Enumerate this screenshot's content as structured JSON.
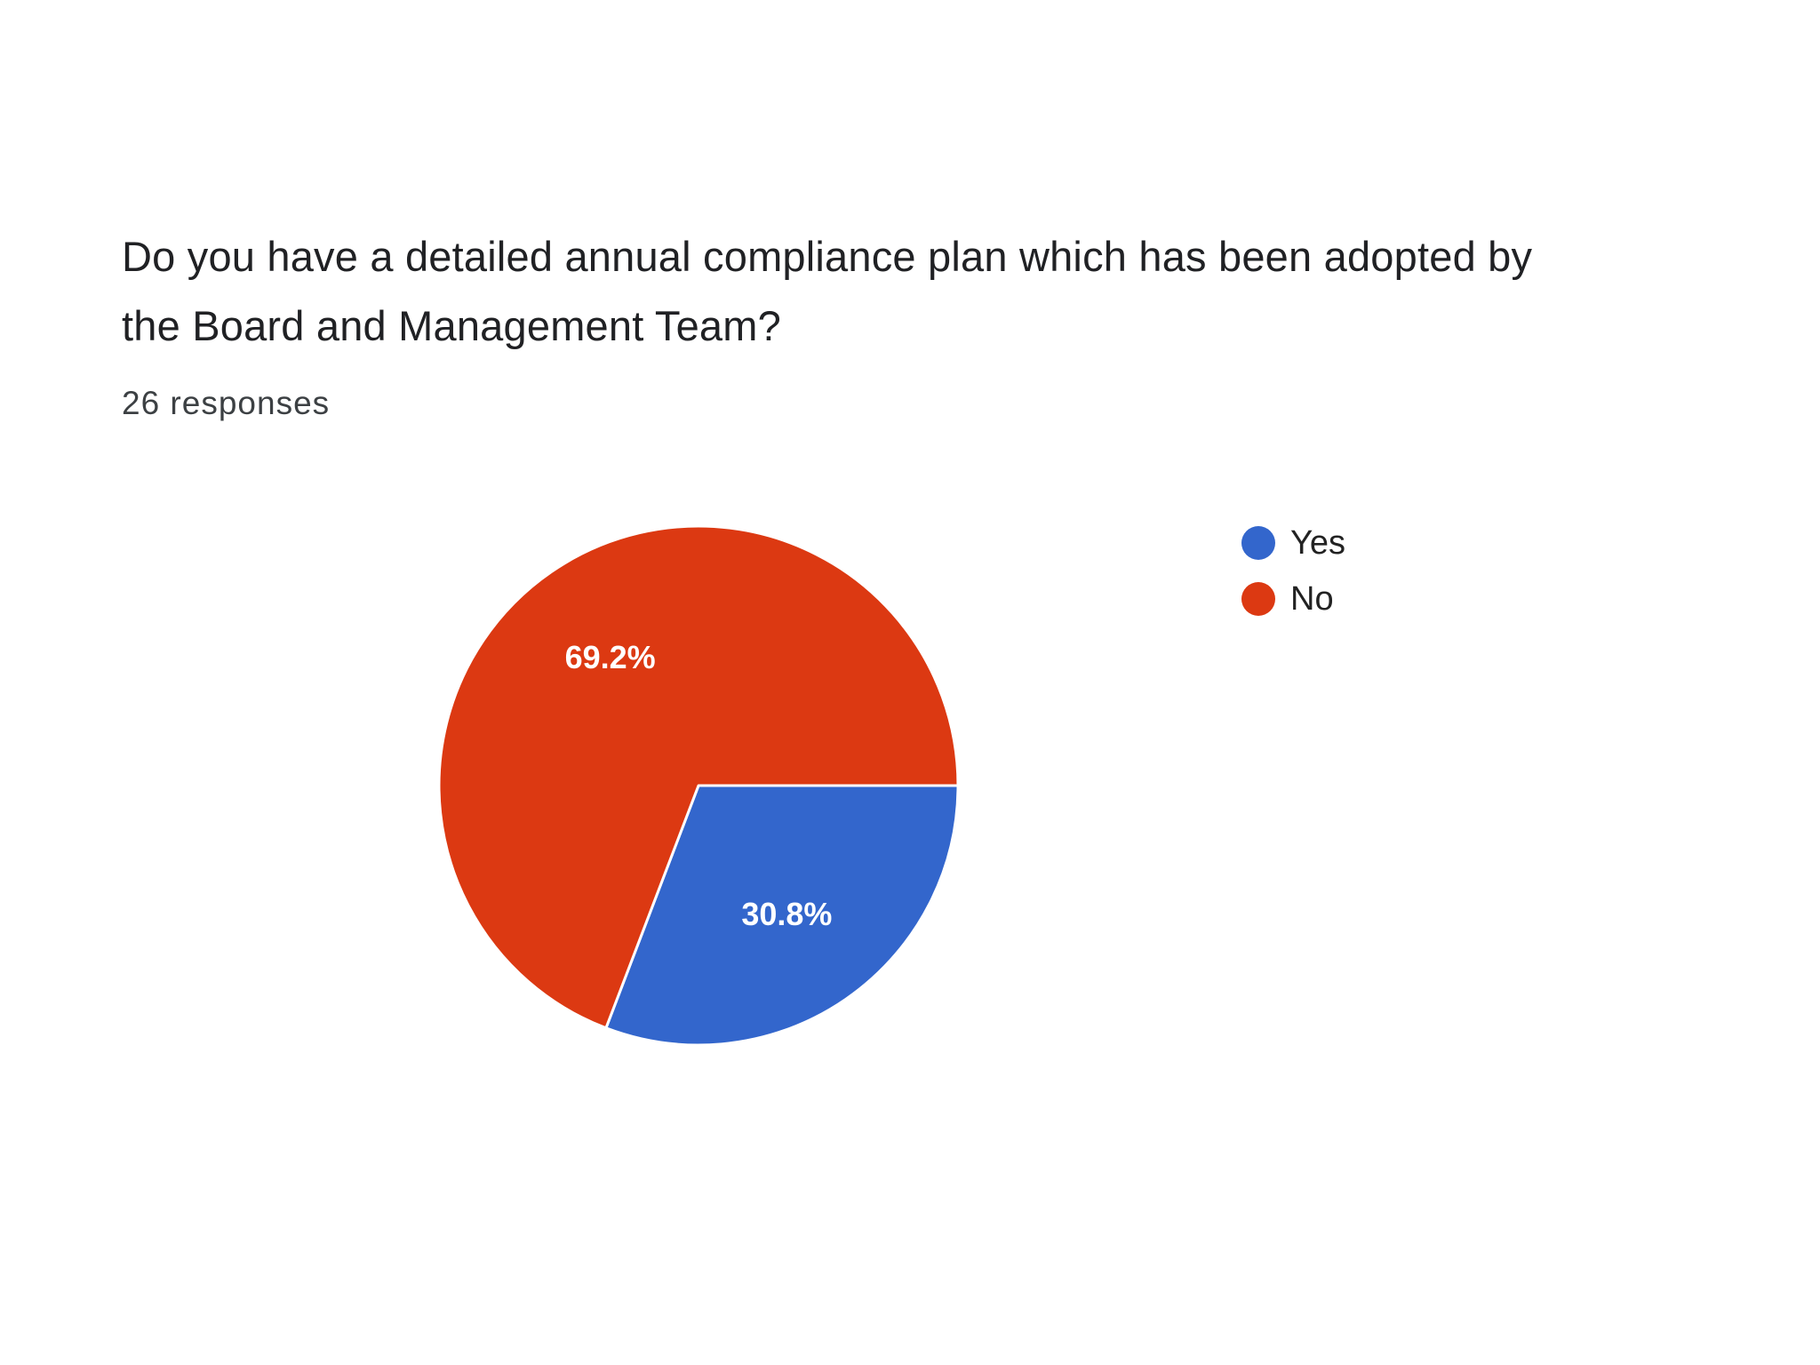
{
  "question": {
    "line1": "Do you have a detailed annual compliance plan which has been adopted by",
    "line2": "the Board and Management Team?"
  },
  "responses_count": "26 responses",
  "chart_data": {
    "type": "pie",
    "categories": [
      "Yes",
      "No"
    ],
    "values": [
      30.8,
      69.2
    ],
    "value_labels": [
      "30.8%",
      "69.2%"
    ],
    "colors": [
      "#3366cc",
      "#dc3912"
    ],
    "legend_position": "right"
  }
}
